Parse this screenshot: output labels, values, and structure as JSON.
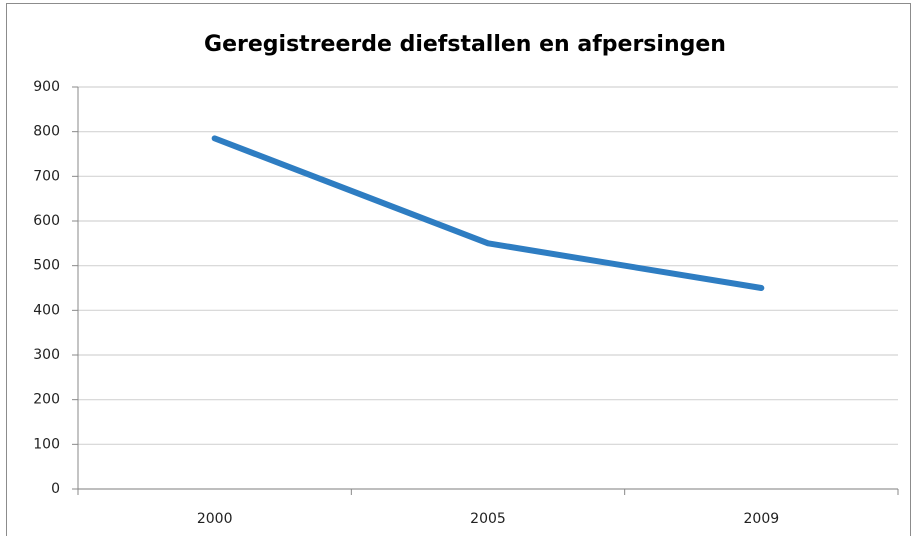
{
  "chart_data": {
    "type": "line",
    "title": "Geregistreerde diefstallen en afpersingen",
    "categories": [
      "2000",
      "2005",
      "2009"
    ],
    "series": [
      {
        "name": "Geregistreerde diefstallen en afpersingen",
        "color": "#2e7dc2",
        "values": [
          785,
          550,
          450
        ]
      }
    ],
    "ylim": [
      0,
      900
    ],
    "yticks": [
      0,
      100,
      200,
      300,
      400,
      500,
      600,
      700,
      800,
      900
    ],
    "grid": true
  }
}
